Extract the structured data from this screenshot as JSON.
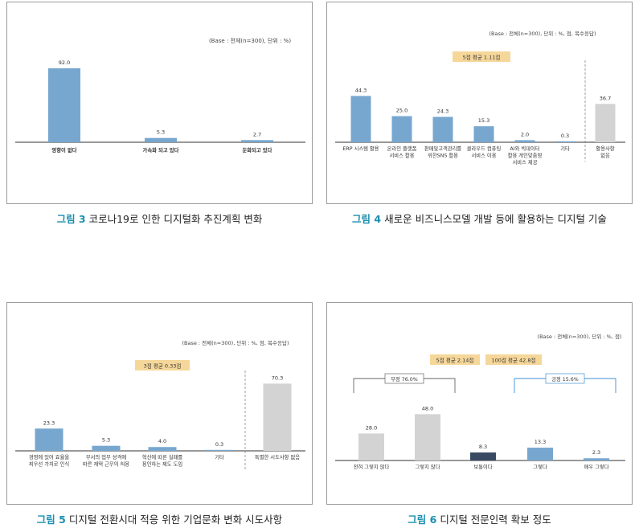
{
  "colors": {
    "bar_blue": "#77a7cf",
    "bar_gray": "#d3d3d3",
    "bar_dark": "#3b4a63",
    "badge_fill": "#f6d79a",
    "bracket_neg": "#666666",
    "bracket_pos": "#3e8fd6",
    "caption_accent": "#1b8fb0"
  },
  "chart_data": [
    {
      "type": "bar",
      "note": "(Base : 전체(n=300), 단위 : %)",
      "categories": [
        "영향이 없다",
        "가속화 되고 있다",
        "둔화되고 있다"
      ],
      "values": [
        92.0,
        5.3,
        2.7
      ],
      "value_labels": [
        "92.0",
        "5.3",
        "2.7"
      ],
      "caption_prefix": "그림 3",
      "caption": "코로나19로 인한 디지털화 추진계획 변화"
    },
    {
      "type": "bar",
      "note": "(Base : 전체(n=300), 단위 : %, 점, 복수응답)",
      "badge": "5점 평균 1.11점",
      "categories": [
        [
          "ERP 시스템 활용"
        ],
        [
          "온라인 플랫폼",
          "서비스 활용"
        ],
        [
          "판매및고객관리를",
          "위한SNS 활용"
        ],
        [
          "클라우드 컴퓨팅",
          "서비스 이용"
        ],
        [
          "AI와 빅데이터",
          "활용 개인맞춤형",
          "서비스 제공"
        ],
        [
          "기타"
        ],
        [
          "활용사항",
          "없음"
        ]
      ],
      "values": [
        44.3,
        25.0,
        24.3,
        15.3,
        2.0,
        0.3,
        36.7
      ],
      "value_labels": [
        "44.3",
        "25.0",
        "24.3",
        "15.3",
        "2.0",
        "0.3",
        "36.7"
      ],
      "caption_prefix": "그림 4",
      "caption": "새로운 비즈니스모델 개발 등에 활용하는 디지털 기술"
    },
    {
      "type": "bar",
      "note": "(Base : 전체(n=300), 단위 : %, 점, 복수응답)",
      "badge": "3점 평균 0.33점",
      "categories": [
        [
          "경영에 있어 효율을",
          "최우선 가치로 인식"
        ],
        [
          "부서의 업무 성격에",
          "따른 재택 근무의 허용"
        ],
        [
          "혁신에 따른 실패를",
          "용인하는 제도 도입"
        ],
        [
          "기타"
        ],
        [
          "특별한 시도사항 없음"
        ]
      ],
      "values": [
        23.3,
        5.3,
        4.0,
        0.3,
        70.3
      ],
      "value_labels": [
        "23.3",
        "5.3",
        "4.0",
        "0.3",
        "70.3"
      ],
      "caption_prefix": "그림 5",
      "caption": "디지털 전환시대 적응 위한 기업문화 변화 시도사항"
    },
    {
      "type": "bar",
      "note": "(Base : 전체(n=300), 단위 : %, 점)",
      "badges": [
        "5점 평균 2.14점",
        "100점 평균 42.8점"
      ],
      "bracket_neg": "부정   76.0%",
      "bracket_pos": "긍정   15.6%",
      "categories": [
        "전혀 그렇지 않다",
        "그렇지 않다",
        "보통이다",
        "그렇다",
        "매우 그렇다"
      ],
      "values": [
        28.0,
        48.0,
        8.3,
        13.3,
        2.3
      ],
      "value_labels": [
        "28.0",
        "48.0",
        "8.3",
        "13.3",
        "2.3"
      ],
      "caption_prefix": "그림 6",
      "caption": "디지털 전문인력 확보 정도"
    }
  ]
}
